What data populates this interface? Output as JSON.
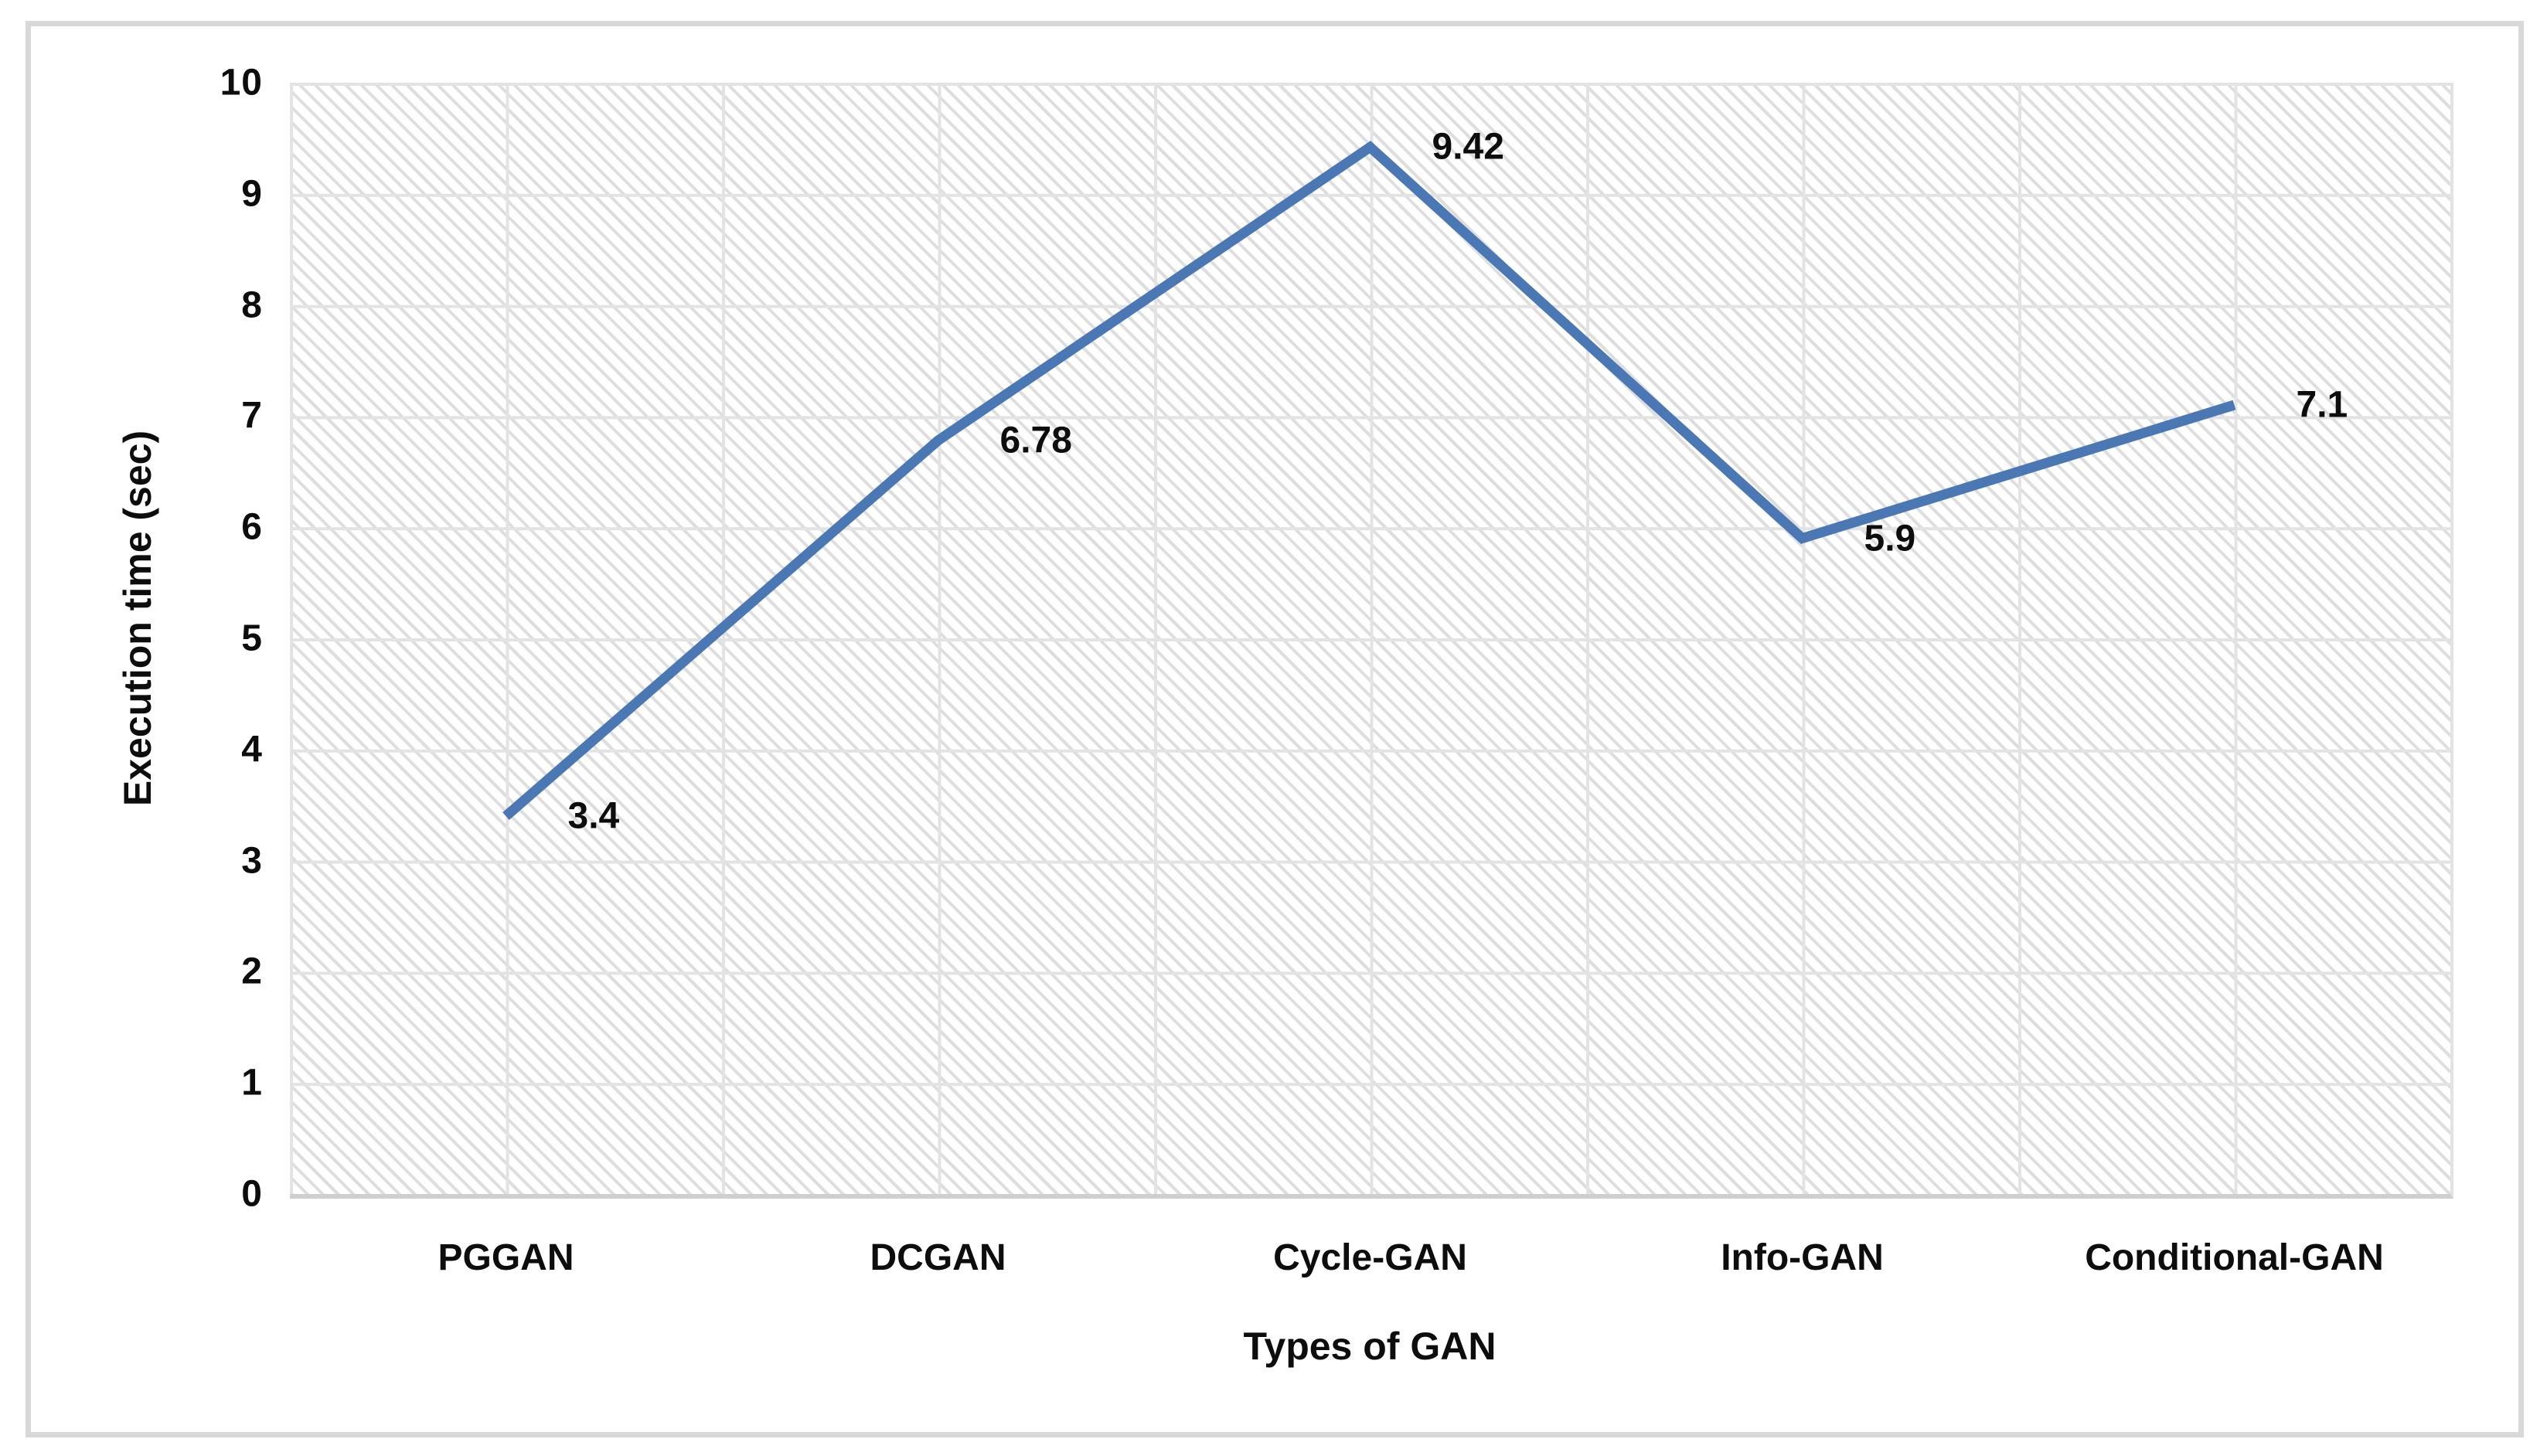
{
  "figure": {
    "frame_color": "#d8d8d8",
    "gridline_color": "#e3e3e3",
    "axis_line_color": "#cfcfcf",
    "hatch_color": "#dedede",
    "text_color": "#0d0d0d"
  },
  "chart_data": {
    "type": "line",
    "title": "",
    "categories": [
      "PGGAN",
      "DCGAN",
      "Cycle-GAN",
      "Info-GAN",
      "Conditional-GAN"
    ],
    "series": [
      {
        "name": "Execution time",
        "values": [
          3.4,
          6.78,
          9.42,
          5.9,
          7.1
        ]
      }
    ],
    "data_labels": [
      "3.4",
      "6.78",
      "9.42",
      "5.9",
      "7.1"
    ],
    "xlabel": "Types of GAN",
    "ylabel": "Execution time (sec)",
    "ylim": [
      0,
      10
    ],
    "y_ticks": [
      0,
      1,
      2,
      3,
      4,
      5,
      6,
      7,
      8,
      9,
      10
    ],
    "line_color": "#4a78b4",
    "line_width": 13,
    "markers": false,
    "legend": "none",
    "grid": "major horizontal and vertical light gray over diagonal hatch background"
  }
}
